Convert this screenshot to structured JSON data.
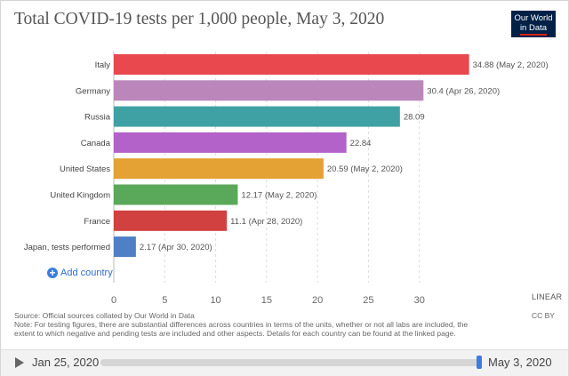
{
  "title": "Total COVID-19 tests per 1,000 people, May 3, 2020",
  "logo": {
    "line1": "Our World",
    "line2": "in Data"
  },
  "chart_data": {
    "type": "bar",
    "orientation": "horizontal",
    "title": "Total COVID-19 tests per 1,000 people, May 3, 2020",
    "xlim": [
      0,
      35
    ],
    "xticks": [
      0,
      5,
      10,
      15,
      20,
      25,
      30
    ],
    "grid": true,
    "scale": "linear",
    "categories": [
      "Italy",
      "Germany",
      "Russia",
      "Canada",
      "United States",
      "United Kingdom",
      "France",
      "Japan, tests performed"
    ],
    "values": [
      34.88,
      30.4,
      28.09,
      22.84,
      20.59,
      12.17,
      11.1,
      2.17
    ],
    "labels": [
      "34.88 (May 2, 2020)",
      "30.4 (Apr 26, 2020)",
      "28.09",
      "22.84",
      "20.59 (May 2, 2020)",
      "12.17 (May 2, 2020)",
      "11.1 (Apr 28, 2020)",
      "2.17 (Apr 30, 2020)"
    ],
    "colors": [
      "#e8484e",
      "#bb87bb",
      "#3fa1a3",
      "#b262c8",
      "#e3a233",
      "#5aa85a",
      "#d0413f",
      "#4f7fc5"
    ]
  },
  "add_country": "Add country",
  "scale_toggle": "LINEAR",
  "source": "Source: Official sources collated by Our World in Data",
  "note": "Note: For testing figures, there are substantial differences across countries in terms of the units, whether or not all labs are included, the extent to which negative and pending tests are included and other aspects. Details for each country can be found at the linked page.",
  "license": "CC BY",
  "timeline": {
    "start": "Jan 25, 2020",
    "end": "May 3, 2020"
  }
}
